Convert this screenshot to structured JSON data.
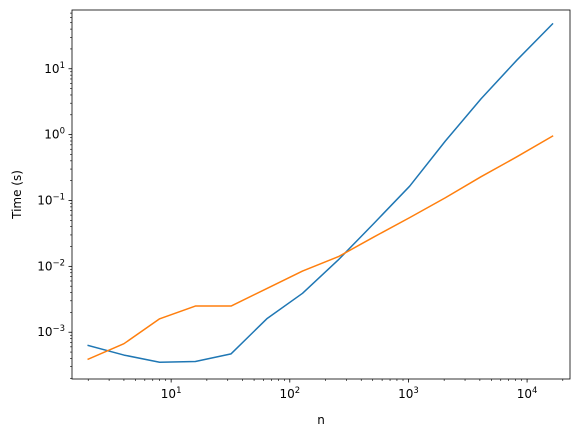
{
  "chart_data": {
    "type": "line",
    "xlabel": "n",
    "ylabel": "Time (s)",
    "xscale": "log",
    "yscale": "log",
    "xlim": [
      1.46,
      23000
    ],
    "ylim": [
      0.000195,
      78
    ],
    "grid": false,
    "legend": "none",
    "x_ticks": [
      {
        "value": 10,
        "base": "10",
        "exp": "1"
      },
      {
        "value": 100,
        "base": "10",
        "exp": "2"
      },
      {
        "value": 1000,
        "base": "10",
        "exp": "3"
      },
      {
        "value": 10000,
        "base": "10",
        "exp": "4"
      }
    ],
    "y_ticks": [
      {
        "value": 0.001,
        "base": "10",
        "exp": "−3"
      },
      {
        "value": 0.01,
        "base": "10",
        "exp": "−2"
      },
      {
        "value": 0.1,
        "base": "10",
        "exp": "−1"
      },
      {
        "value": 1,
        "base": "10",
        "exp": "0"
      },
      {
        "value": 10,
        "base": "10",
        "exp": "1"
      }
    ],
    "x": [
      2,
      4,
      8,
      16,
      32,
      64,
      128,
      256,
      512,
      1024,
      2048,
      4096,
      8192,
      16384
    ],
    "series": [
      {
        "color": "#1f77b4",
        "values": [
          0.00063,
          0.00045,
          0.00035,
          0.00036,
          0.00047,
          0.0016,
          0.0039,
          0.0125,
          0.045,
          0.165,
          0.8,
          3.5,
          13.5,
          48
        ]
      },
      {
        "color": "#ff7f0e",
        "values": [
          0.00039,
          0.00067,
          0.0016,
          0.0025,
          0.0025,
          0.0046,
          0.0085,
          0.014,
          0.028,
          0.055,
          0.11,
          0.23,
          0.46,
          0.95
        ]
      }
    ]
  }
}
